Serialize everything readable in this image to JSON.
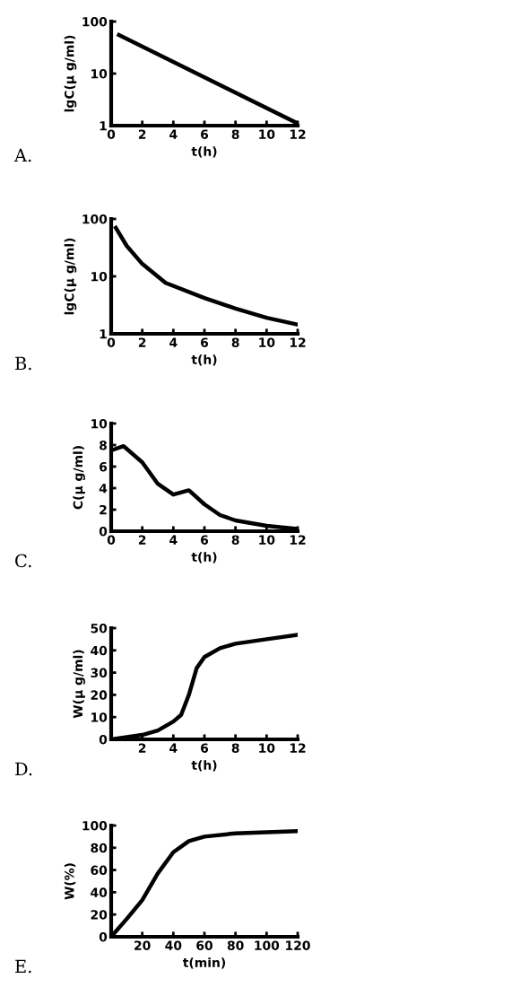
{
  "chart_data": [
    {
      "type": "line",
      "xlabel": "t(h)",
      "ylabel": "lgC(μ g/ml)",
      "annotations": [
        "A."
      ],
      "log": true,
      "x": [
        0.5,
        12
      ],
      "values": [
        55,
        1.1
      ],
      "color": "#000000",
      "xlim": [
        0,
        12
      ],
      "xticks": [
        0,
        2,
        4,
        6,
        8,
        10,
        12
      ],
      "ylim": [
        1,
        100
      ],
      "yticks": [
        1,
        10,
        100
      ],
      "grid": false,
      "legend": false
    },
    {
      "type": "line",
      "xlabel": "t(h)",
      "ylabel": "lgC(μ g/ml)",
      "annotations": [
        "B."
      ],
      "log": true,
      "x": [
        0.3,
        1,
        2,
        3.5,
        6,
        8,
        10,
        12
      ],
      "values": [
        70,
        34,
        16.5,
        7.7,
        4.2,
        2.75,
        1.9,
        1.45
      ],
      "color": "#000000",
      "xlim": [
        0,
        12
      ],
      "xticks": [
        0,
        2,
        4,
        6,
        8,
        10,
        12
      ],
      "ylim": [
        1,
        100
      ],
      "yticks": [
        1,
        10,
        100
      ],
      "grid": false,
      "legend": false
    },
    {
      "type": "line",
      "xlabel": "t(h)",
      "ylabel": "C(μ g/ml)",
      "annotations": [
        "C."
      ],
      "x": [
        0,
        0.8,
        2,
        3,
        4,
        5,
        6,
        7,
        8,
        10,
        12
      ],
      "values": [
        7.5,
        7.9,
        6.4,
        4.4,
        3.4,
        3.8,
        2.5,
        1.5,
        1,
        0.5,
        0.2
      ],
      "color": "#000000",
      "xlim": [
        0,
        12
      ],
      "xticks": [
        0,
        2,
        4,
        6,
        8,
        10,
        12
      ],
      "ylim": [
        0,
        10
      ],
      "yticks": [
        0,
        2,
        4,
        6,
        8,
        10
      ],
      "grid": false,
      "legend": false
    },
    {
      "type": "line",
      "xlabel": "t(h)",
      "ylabel": "W(μ g/ml)",
      "annotations": [
        "D."
      ],
      "x": [
        0,
        2,
        3,
        4,
        4.5,
        5,
        5.5,
        6,
        7,
        8,
        10,
        12
      ],
      "values": [
        0,
        2,
        4,
        8,
        11,
        20,
        32,
        37,
        41,
        43,
        45,
        47
      ],
      "color": "#000000",
      "xlim": [
        0,
        12
      ],
      "xticks": [
        {
          "value": 0,
          "label": null
        },
        2,
        4,
        6,
        8,
        10,
        12
      ],
      "ylim": [
        0,
        50
      ],
      "yticks": [
        0,
        10,
        20,
        30,
        40,
        50
      ],
      "grid": false,
      "legend": false
    },
    {
      "type": "line",
      "xlabel": "t(min)",
      "ylabel": "W(%)",
      "annotations": [
        "E."
      ],
      "x": [
        0,
        10,
        20,
        30,
        40,
        50,
        60,
        80,
        100,
        120
      ],
      "values": [
        0,
        16,
        33,
        57,
        76,
        86,
        90,
        93,
        94,
        95
      ],
      "color": "#000000",
      "xlim": [
        0,
        120
      ],
      "xticks": [
        {
          "value": 0,
          "label": null
        },
        20,
        40,
        60,
        80,
        100,
        120
      ],
      "ylim": [
        0,
        100
      ],
      "yticks": [
        0,
        20,
        40,
        60,
        80,
        100
      ],
      "grid": false,
      "legend": false
    }
  ]
}
